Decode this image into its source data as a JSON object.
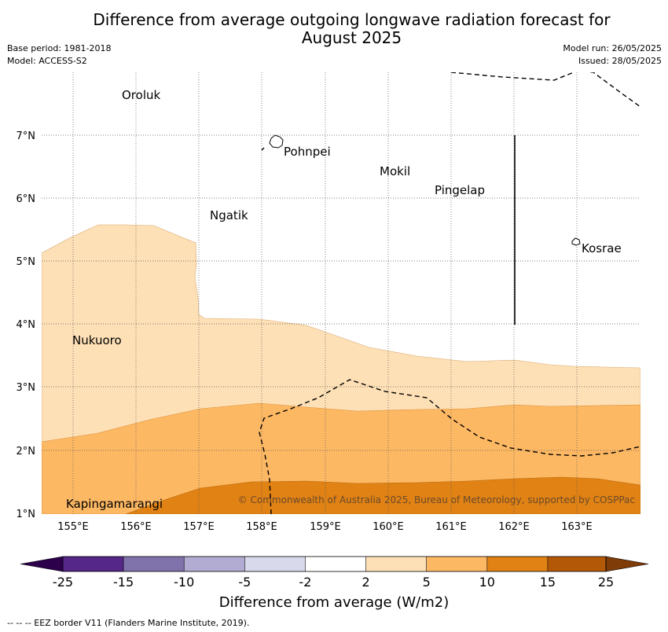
{
  "title_line1": "Difference from average outgoing longwave radiation forecast for",
  "title_line2": "August 2025",
  "meta": {
    "base_period": "Base period: 1981-2018",
    "model": "Model: ACCESS-S2",
    "model_run": "Model run: 26/05/2025",
    "issued": "Issued: 28/05/2025"
  },
  "axes": {
    "lon_labels": [
      "155°E",
      "156°E",
      "157°E",
      "158°E",
      "159°E",
      "160°E",
      "161°E",
      "162°E",
      "163°E"
    ],
    "lat_labels": [
      "1°N",
      "2°N",
      "3°N",
      "4°N",
      "5°N",
      "6°N",
      "7°N"
    ]
  },
  "places": [
    {
      "name": "Oroluk",
      "lon": 155.75,
      "lat": 7.65
    },
    {
      "name": "Pohnpei",
      "lon": 158.25,
      "lat": 6.85
    },
    {
      "name": "Mokil",
      "lon": 159.85,
      "lat": 6.45
    },
    {
      "name": "Pingelap",
      "lon": 160.7,
      "lat": 6.15
    },
    {
      "name": "Ngatik",
      "lon": 157.15,
      "lat": 5.8
    },
    {
      "name": "Kosrae",
      "lon": 163.0,
      "lat": 5.3
    },
    {
      "name": "Nukuoro",
      "lon": 154.95,
      "lat": 3.85
    },
    {
      "name": "Kapingamarangi",
      "lon": 154.85,
      "lat": 1.25
    }
  ],
  "copyright": "© Commonwealth of Australia 2025, Bureau of Meteorology, supported by COSPPac",
  "colorbar": {
    "ticks": [
      "-25",
      "-15",
      "-10",
      "-5",
      "-2",
      "2",
      "5",
      "10",
      "15",
      "25"
    ],
    "colors": [
      "#542788",
      "#8073ac",
      "#b2abd2",
      "#d8daeb",
      "#ffffff",
      "#fee0b6",
      "#fdb863",
      "#e08214",
      "#b35806"
    ],
    "under_color": "#2d004b",
    "over_color": "#7f3b08",
    "label": "Difference from average (W/m2)"
  },
  "footer": "--  --  -- EEZ border V11 (Flanders Marine Institute, 2019)."
}
